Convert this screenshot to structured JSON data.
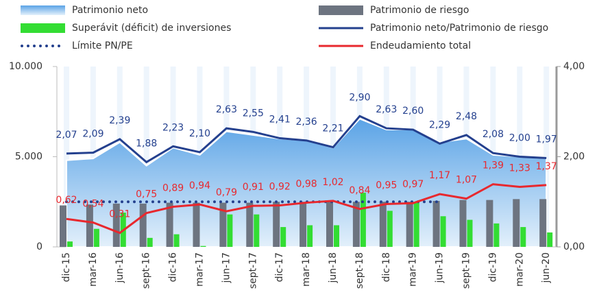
{
  "chart_data": {
    "type": "combo",
    "categories": [
      "dic-15",
      "mar-16",
      "jun-16",
      "sept-16",
      "dic-16",
      "mar-17",
      "jun-17",
      "sept-17",
      "dic-17",
      "mar-18",
      "jun-18",
      "sept-18",
      "dic-18",
      "mar-19",
      "jun-19",
      "sept-19",
      "dic-19",
      "mar-20",
      "jun-20"
    ],
    "ylim": [
      0,
      10000
    ],
    "yticks": [
      {
        "value": 0,
        "label": "0"
      },
      {
        "value": 5000,
        "label": "5.000"
      },
      {
        "value": 10000,
        "label": "10.000"
      }
    ],
    "y2lim": [
      0,
      4
    ],
    "y2ticks": [
      {
        "value": 0,
        "label": "0,00"
      },
      {
        "value": 2,
        "label": "2,00"
      },
      {
        "value": 4,
        "label": "4,00"
      }
    ],
    "series": [
      {
        "name": "Patrimonio neto",
        "type": "area",
        "color": "#7fb8e8",
        "values": [
          4800,
          4900,
          5800,
          4500,
          5500,
          5100,
          6400,
          6200,
          6000,
          5900,
          5500,
          7100,
          6500,
          6500,
          5800,
          6000,
          5100,
          5000,
          4900
        ]
      },
      {
        "name": "Patrimonio de riesgo",
        "type": "bar",
        "color": "#6d7480",
        "values": [
          2300,
          2350,
          2400,
          2400,
          2450,
          2450,
          2450,
          2450,
          2500,
          2500,
          2500,
          2500,
          2500,
          2500,
          2550,
          2600,
          2600,
          2650,
          2650
        ]
      },
      {
        "name": "Superávit (déficit) de inversiones",
        "type": "bar",
        "color": "#33dd33",
        "values": [
          300,
          1000,
          1900,
          500,
          700,
          50,
          1800,
          1800,
          1100,
          1200,
          1200,
          3000,
          2000,
          2500,
          1700,
          1500,
          1300,
          1100,
          800
        ]
      },
      {
        "name": "Patrimonio neto/Patrimonio de riesgo",
        "type": "line",
        "axis": "y2",
        "color": "#24408e",
        "values": [
          2.07,
          2.09,
          2.39,
          1.88,
          2.23,
          2.1,
          2.63,
          2.55,
          2.41,
          2.36,
          2.21,
          2.9,
          2.63,
          2.6,
          2.29,
          2.48,
          2.08,
          2.0,
          1.97
        ],
        "value_labels": [
          "2,07",
          "2,09",
          "2,39",
          "1,88",
          "2,23",
          "2,10",
          "2,63",
          "2,55",
          "2,41",
          "2,36",
          "2,21",
          "2,90",
          "2,63",
          "2,60",
          "2,29",
          "2,48",
          "2,08",
          "2,00",
          "1,97"
        ]
      },
      {
        "name": "Límite PN/PE",
        "type": "dotted",
        "axis": "y2",
        "color": "#24408e",
        "values": [
          1,
          1,
          1,
          1,
          1,
          1,
          1,
          1,
          1,
          1,
          1,
          1,
          1,
          1,
          1,
          null,
          null,
          null,
          null
        ]
      },
      {
        "name": "Endeudamiento total",
        "type": "line",
        "axis": "y2",
        "color": "#e8282e",
        "values": [
          0.62,
          0.54,
          0.31,
          0.75,
          0.89,
          0.94,
          0.79,
          0.91,
          0.92,
          0.98,
          1.02,
          0.84,
          0.95,
          0.97,
          1.17,
          1.07,
          1.39,
          1.33,
          1.37
        ],
        "value_labels": [
          "0,62",
          "0,54",
          "0,31",
          "0,75",
          "0,89",
          "0,94",
          "0,79",
          "0,91",
          "0,92",
          "0,98",
          "1,02",
          "0,84",
          "0,95",
          "0,97",
          "1,17",
          "1,07",
          "1,39",
          "1,33",
          "1,37"
        ]
      }
    ]
  }
}
